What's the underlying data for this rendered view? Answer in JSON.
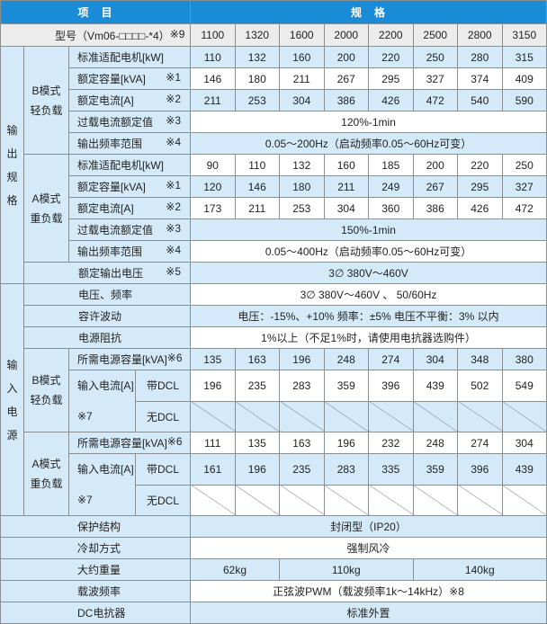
{
  "header": {
    "item": "项　目",
    "spec": "规　格"
  },
  "model": {
    "label": "型号（Vm06-□□□□-*4）",
    "note": "※9",
    "values": [
      "1100",
      "1320",
      "1600",
      "2000",
      "2200",
      "2500",
      "2800",
      "3150"
    ]
  },
  "output": {
    "group": "输出规格",
    "b_mode": {
      "label": "B模式\n轻负载",
      "motor": {
        "label": "标准适配电机[kW]",
        "note": "",
        "values": [
          "110",
          "132",
          "160",
          "200",
          "220",
          "250",
          "280",
          "315"
        ]
      },
      "capacity": {
        "label": "额定容量[kVA]",
        "note": "※1",
        "values": [
          "146",
          "180",
          "211",
          "267",
          "295",
          "327",
          "374",
          "409"
        ]
      },
      "current": {
        "label": "额定电流[A]",
        "note": "※2",
        "values": [
          "211",
          "253",
          "304",
          "386",
          "426",
          "472",
          "540",
          "590"
        ]
      },
      "overload": {
        "label": "过载电流额定值",
        "note": "※3",
        "value": "120%-1min"
      },
      "freq": {
        "label": "输出频率范围",
        "note": "※4",
        "value": "0.05～200Hz（启动频率0.05～60Hz可变）"
      }
    },
    "a_mode": {
      "label": "A模式\n重负载",
      "motor": {
        "label": "标准适配电机[kW]",
        "note": "",
        "values": [
          "90",
          "110",
          "132",
          "160",
          "185",
          "200",
          "220",
          "250"
        ]
      },
      "capacity": {
        "label": "额定容量[kVA]",
        "note": "※1",
        "values": [
          "120",
          "146",
          "180",
          "211",
          "249",
          "267",
          "295",
          "327"
        ]
      },
      "current": {
        "label": "额定电流[A]",
        "note": "※2",
        "values": [
          "173",
          "211",
          "253",
          "304",
          "360",
          "386",
          "426",
          "472"
        ]
      },
      "overload": {
        "label": "过载电流额定值",
        "note": "※3",
        "value": "150%-1min"
      },
      "freq": {
        "label": "输出频率范围",
        "note": "※4",
        "value": "0.05～400Hz（启动频率0.05～60Hz可变）"
      }
    },
    "voltage": {
      "label": "额定输出电压",
      "note": "※5",
      "value": "3∅ 380V～460V"
    }
  },
  "input": {
    "group": "输入电源",
    "voltage_freq": {
      "label": "电压、频率",
      "value": "3∅ 380V～460V 、 50/60Hz"
    },
    "tolerance": {
      "label": "容许波动",
      "value": "电压：-15%、+10%  频率：±5% 电压不平衡：3% 以内"
    },
    "impedance": {
      "label": "电源阻抗",
      "value": "1%以上（不足1%时，请使用电抗器选购件）"
    },
    "b_mode": {
      "label": "B模式\n轻负载",
      "capacity": {
        "label": "所需电源容量[kVA]",
        "note": "※6",
        "values": [
          "135",
          "163",
          "196",
          "248",
          "274",
          "304",
          "348",
          "380"
        ]
      },
      "current_label": "输入电流[A]\n※7",
      "with_dcl": {
        "label": "带DCL",
        "values": [
          "196",
          "235",
          "283",
          "359",
          "396",
          "439",
          "502",
          "549"
        ]
      },
      "without_dcl": {
        "label": "无DCL"
      }
    },
    "a_mode": {
      "label": "A模式\n重负载",
      "capacity": {
        "label": "所需电源容量[kVA]",
        "note": "※6",
        "values": [
          "111",
          "135",
          "163",
          "196",
          "232",
          "248",
          "274",
          "304"
        ]
      },
      "current_label": "输入电流[A]\n※7",
      "with_dcl": {
        "label": "带DCL",
        "values": [
          "161",
          "196",
          "235",
          "283",
          "335",
          "359",
          "396",
          "439"
        ]
      },
      "without_dcl": {
        "label": "无DCL"
      }
    }
  },
  "misc": {
    "protection": {
      "label": "保护结构",
      "value": "封闭型（IP20）"
    },
    "cooling": {
      "label": "冷却方式",
      "value": "强制风冷"
    },
    "weight": {
      "label": "大约重量",
      "values": [
        "62kg",
        "110kg",
        "140kg"
      ]
    },
    "carrier": {
      "label": "载波频率",
      "value": "正弦波PWM（载波频率1k～14kHz）※8"
    },
    "dc_reactor": {
      "label": "DC电抗器",
      "value": "标准外置"
    }
  }
}
